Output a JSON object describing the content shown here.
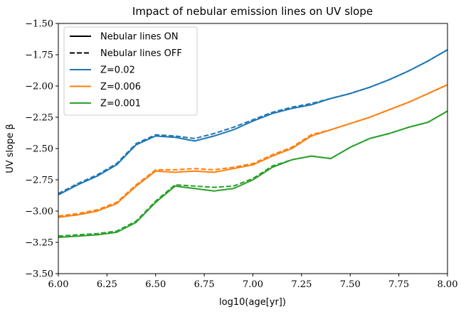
{
  "chart_data": {
    "type": "line",
    "title": "Impact of nebular emission lines on UV slope",
    "xlabel": "log10(age[yr])",
    "ylabel": "UV slope β",
    "xlim": [
      6.0,
      8.0
    ],
    "ylim": [
      -3.5,
      -1.5
    ],
    "xticks": [
      6.0,
      6.25,
      6.5,
      6.75,
      7.0,
      7.25,
      7.5,
      7.75,
      8.0
    ],
    "xtick_labels": [
      "6.00",
      "6.25",
      "6.50",
      "6.75",
      "7.00",
      "7.25",
      "7.50",
      "7.75",
      "8.00"
    ],
    "yticks": [
      -1.5,
      -1.75,
      -2.0,
      -2.25,
      -2.5,
      -2.75,
      -3.0,
      -3.25,
      -3.5
    ],
    "ytick_labels": [
      "−1.50",
      "−1.75",
      "−2.00",
      "−2.25",
      "−2.50",
      "−2.75",
      "−3.00",
      "−3.25",
      "−3.50"
    ],
    "grid": false,
    "legend_position": "top-left",
    "legend": [
      {
        "label": "Nebular lines ON",
        "color": "#000000",
        "style": "solid"
      },
      {
        "label": "Nebular lines OFF",
        "color": "#000000",
        "style": "dashed"
      },
      {
        "label": "Z=0.02",
        "color": "#1f77b4",
        "style": "solid"
      },
      {
        "label": "Z=0.006",
        "color": "#ff7f0e",
        "style": "solid"
      },
      {
        "label": "Z=0.001",
        "color": "#2ca02c",
        "style": "solid"
      }
    ],
    "series": [
      {
        "name": "Z=0.02",
        "lines": "ON",
        "color": "#1f77b4",
        "style": "solid",
        "x": [
          6.0,
          6.1,
          6.2,
          6.3,
          6.4,
          6.5,
          6.6,
          6.7,
          6.8,
          6.9,
          7.0,
          7.1,
          7.2,
          7.3,
          7.4,
          7.5,
          7.6,
          7.7,
          7.8,
          7.9,
          8.0
        ],
        "y": [
          -2.87,
          -2.79,
          -2.72,
          -2.63,
          -2.47,
          -2.4,
          -2.41,
          -2.44,
          -2.4,
          -2.35,
          -2.28,
          -2.22,
          -2.18,
          -2.15,
          -2.1,
          -2.06,
          -2.01,
          -1.95,
          -1.88,
          -1.8,
          -1.71
        ]
      },
      {
        "name": "Z=0.02",
        "lines": "OFF",
        "color": "#1f77b4",
        "style": "dashed",
        "x": [
          6.0,
          6.1,
          6.2,
          6.3,
          6.4,
          6.5,
          6.6,
          6.7,
          6.8,
          6.9,
          7.0,
          7.1,
          7.2,
          7.3,
          7.4,
          7.5,
          7.6,
          7.7,
          7.8,
          7.9,
          8.0
        ],
        "y": [
          -2.86,
          -2.78,
          -2.71,
          -2.62,
          -2.46,
          -2.39,
          -2.4,
          -2.42,
          -2.38,
          -2.33,
          -2.27,
          -2.21,
          -2.17,
          -2.14,
          -2.1,
          -2.06,
          -2.01,
          -1.95,
          -1.88,
          -1.8,
          -1.71
        ]
      },
      {
        "name": "Z=0.006",
        "lines": "ON",
        "color": "#ff7f0e",
        "style": "solid",
        "x": [
          6.0,
          6.1,
          6.2,
          6.3,
          6.4,
          6.5,
          6.6,
          6.7,
          6.8,
          6.9,
          7.0,
          7.1,
          7.2,
          7.3,
          7.4,
          7.5,
          7.6,
          7.7,
          7.8,
          7.9,
          8.0
        ],
        "y": [
          -3.05,
          -3.03,
          -3.0,
          -2.94,
          -2.8,
          -2.68,
          -2.69,
          -2.68,
          -2.69,
          -2.66,
          -2.63,
          -2.56,
          -2.5,
          -2.4,
          -2.35,
          -2.3,
          -2.25,
          -2.19,
          -2.13,
          -2.06,
          -1.99
        ]
      },
      {
        "name": "Z=0.006",
        "lines": "OFF",
        "color": "#ff7f0e",
        "style": "dashed",
        "x": [
          6.0,
          6.1,
          6.2,
          6.3,
          6.4,
          6.5,
          6.6,
          6.7,
          6.8,
          6.9,
          7.0,
          7.1,
          7.2,
          7.3,
          7.4,
          7.5,
          7.6,
          7.7,
          7.8,
          7.9,
          8.0
        ],
        "y": [
          -3.04,
          -3.02,
          -2.99,
          -2.93,
          -2.79,
          -2.67,
          -2.67,
          -2.66,
          -2.67,
          -2.65,
          -2.62,
          -2.55,
          -2.49,
          -2.39,
          -2.35,
          -2.3,
          -2.25,
          -2.19,
          -2.13,
          -2.06,
          -1.99
        ]
      },
      {
        "name": "Z=0.001",
        "lines": "ON",
        "color": "#2ca02c",
        "style": "solid",
        "x": [
          6.0,
          6.1,
          6.2,
          6.3,
          6.4,
          6.5,
          6.6,
          6.7,
          6.8,
          6.9,
          7.0,
          7.1,
          7.2,
          7.3,
          7.4,
          7.5,
          7.6,
          7.7,
          7.8,
          7.9,
          8.0
        ],
        "y": [
          -3.21,
          -3.2,
          -3.19,
          -3.17,
          -3.09,
          -2.93,
          -2.8,
          -2.82,
          -2.84,
          -2.82,
          -2.75,
          -2.65,
          -2.59,
          -2.56,
          -2.58,
          -2.49,
          -2.42,
          -2.38,
          -2.33,
          -2.29,
          -2.2
        ]
      },
      {
        "name": "Z=0.001",
        "lines": "OFF",
        "color": "#2ca02c",
        "style": "dashed",
        "x": [
          6.0,
          6.1,
          6.2,
          6.3,
          6.4,
          6.5,
          6.6,
          6.7,
          6.8,
          6.9,
          7.0,
          7.1,
          7.2,
          7.3,
          7.4,
          7.5,
          7.6,
          7.7,
          7.8,
          7.9,
          8.0
        ],
        "y": [
          -3.2,
          -3.19,
          -3.18,
          -3.16,
          -3.08,
          -2.92,
          -2.79,
          -2.8,
          -2.81,
          -2.8,
          -2.74,
          -2.64,
          -2.59,
          -2.56,
          -2.58,
          -2.49,
          -2.42,
          -2.38,
          -2.33,
          -2.29,
          -2.2
        ]
      }
    ]
  }
}
